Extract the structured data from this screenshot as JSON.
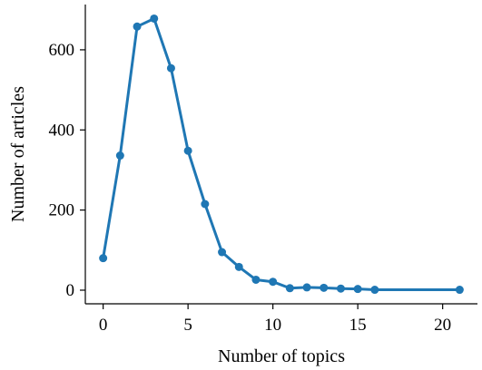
{
  "chart_data": {
    "type": "line",
    "title": "",
    "xlabel": "Number of topics",
    "ylabel": "Number of articles",
    "xlim": [
      -1.05,
      22.05
    ],
    "ylim": [
      -34,
      713
    ],
    "xticks": [
      0,
      5,
      10,
      15,
      20
    ],
    "yticks": [
      0,
      200,
      400,
      600
    ],
    "grid": false,
    "legend": "none",
    "series": [
      {
        "color": "#1f77b4",
        "marker": "circle",
        "x": [
          0,
          1,
          2,
          3,
          4,
          5,
          6,
          7,
          8,
          9,
          10,
          11,
          12,
          13,
          14,
          15,
          16,
          21
        ],
        "y": [
          80,
          336,
          658,
          678,
          554,
          348,
          215,
          95,
          58,
          26,
          21,
          5,
          7,
          6,
          4,
          3,
          1,
          1
        ]
      }
    ]
  }
}
